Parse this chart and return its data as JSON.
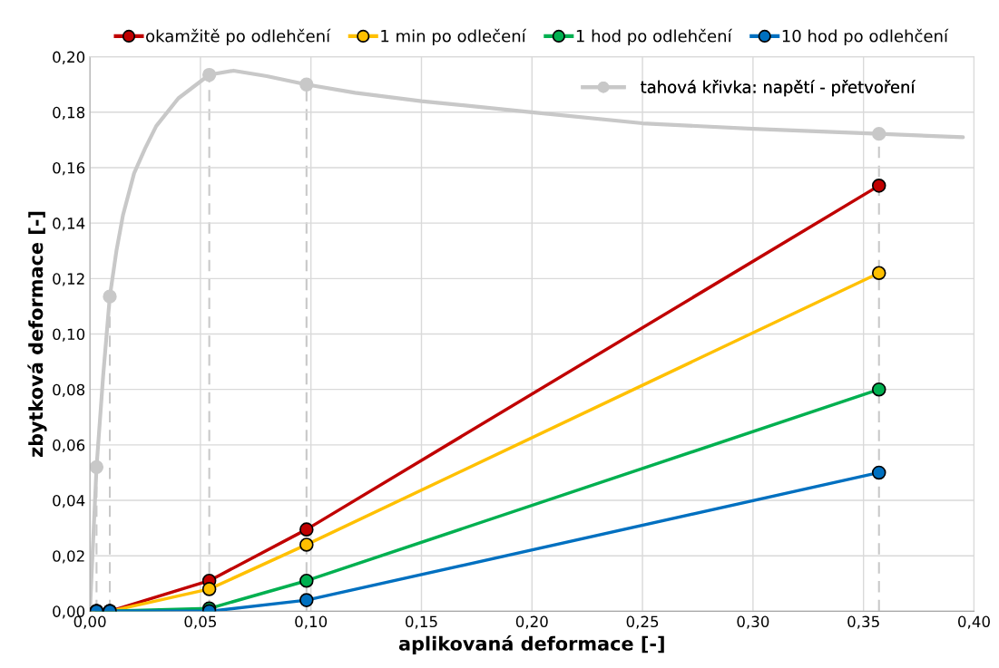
{
  "chart_data": {
    "type": "line",
    "xlabel": "aplikovaná deformace [-]",
    "ylabel": "zbytková deformace [-]",
    "xlim": [
      0,
      0.4
    ],
    "ylim": [
      0,
      0.2
    ],
    "xticks": [
      {
        "value": 0,
        "label": "0,00"
      },
      {
        "value": 0.05,
        "label": "0,05"
      },
      {
        "value": 0.1,
        "label": "0,10"
      },
      {
        "value": 0.15,
        "label": "0,15"
      },
      {
        "value": 0.2,
        "label": "0,20"
      },
      {
        "value": 0.25,
        "label": "0,25"
      },
      {
        "value": 0.3,
        "label": "0,30"
      },
      {
        "value": 0.35,
        "label": "0,35"
      },
      {
        "value": 0.4,
        "label": "0,40"
      }
    ],
    "yticks": [
      {
        "value": 0,
        "label": "0,00"
      },
      {
        "value": 0.02,
        "label": "0,02"
      },
      {
        "value": 0.04,
        "label": "0,04"
      },
      {
        "value": 0.06,
        "label": "0,06"
      },
      {
        "value": 0.08,
        "label": "0,08"
      },
      {
        "value": 0.1,
        "label": "0,10"
      },
      {
        "value": 0.12,
        "label": "0,12"
      },
      {
        "value": 0.14,
        "label": "0,14"
      },
      {
        "value": 0.16,
        "label": "0,16"
      },
      {
        "value": 0.18,
        "label": "0,18"
      },
      {
        "value": 0.2,
        "label": "0,20"
      }
    ],
    "grid": true,
    "legend": "top",
    "marker": "circle",
    "ref_lines": [
      {
        "axis": "x",
        "value": 0.003,
        "color": "#c8c8c8",
        "line_style": "dashed"
      },
      {
        "axis": "x",
        "value": 0.009,
        "color": "#c8c8c8",
        "line_style": "dashed"
      },
      {
        "axis": "x",
        "value": 0.054,
        "color": "#c8c8c8",
        "line_style": "dashed"
      },
      {
        "axis": "x",
        "value": 0.098,
        "color": "#c8c8c8",
        "line_style": "dashed"
      },
      {
        "axis": "x",
        "value": 0.357,
        "color": "#c8c8c8",
        "line_style": "dashed"
      }
    ],
    "x": [
      0.003,
      0.009,
      0.054,
      0.098,
      0.357
    ],
    "series": [
      {
        "name": "okamžitě po odlehčení",
        "color": "#c00000",
        "values": [
          0,
          0,
          0.011,
          0.0295,
          0.1535
        ]
      },
      {
        "name": "1 min po odlečení",
        "color": "#ffc000",
        "values": [
          0,
          0,
          0.008,
          0.024,
          0.122
        ]
      },
      {
        "name": "1 hod po odlehčení",
        "color": "#00b050",
        "values": [
          0,
          0,
          0.001,
          0.011,
          0.08
        ]
      },
      {
        "name": "10 hod po odlehčení",
        "color": "#0070c0",
        "values": [
          0,
          0,
          0,
          0.004,
          0.05
        ]
      },
      {
        "name": "tahová křivka: napětí - přetvoření",
        "color": "#c8c8c8",
        "marker": "none",
        "x": [
          0,
          0.003,
          0.006,
          0.009,
          0.012,
          0.015,
          0.02,
          0.025,
          0.03,
          0.04,
          0.054,
          0.065,
          0.08,
          0.098,
          0.12,
          0.15,
          0.2,
          0.25,
          0.3,
          0.357,
          0.395
        ],
        "values": [
          0,
          0.052,
          0.085,
          0.1135,
          0.13,
          0.143,
          0.158,
          0.167,
          0.175,
          0.185,
          0.1935,
          0.195,
          0.193,
          0.19,
          0.187,
          0.184,
          0.18,
          0.176,
          0.174,
          0.1722,
          0.171
        ]
      },
      {
        "type": "scatter",
        "color": "#c8c8c8",
        "x": [
          0.003,
          0.009,
          0.054,
          0.098,
          0.357
        ],
        "values": [
          0.052,
          0.1135,
          0.1935,
          0.19,
          0.1722
        ]
      }
    ]
  }
}
